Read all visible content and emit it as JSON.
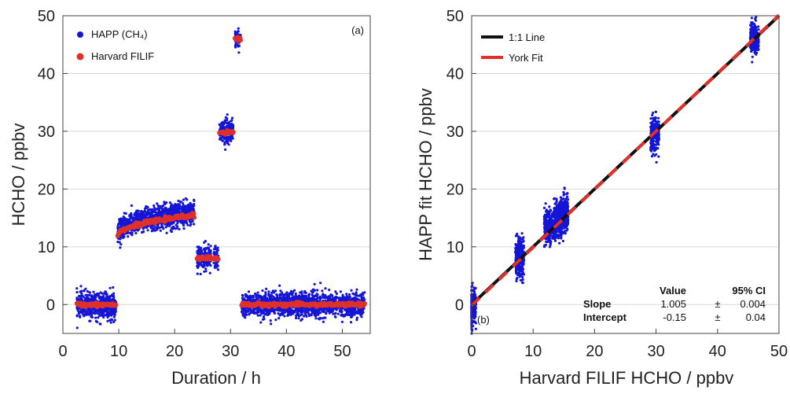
{
  "chart_data": [
    {
      "panel_label": "(a)",
      "type": "scatter",
      "xlabel": "Duration / h",
      "ylabel": "HCHO / ppbv",
      "xlim": [
        0,
        55
      ],
      "ylim": [
        -5,
        50
      ],
      "x_ticks": [
        0,
        10,
        20,
        30,
        40,
        50
      ],
      "y_ticks": [
        0,
        10,
        20,
        30,
        40,
        50
      ],
      "grid": "horizontal",
      "legend_position": "top-left",
      "series": [
        {
          "name": "HAPP (CH₄)",
          "color": "#1515d6",
          "segments": [
            {
              "x_start": 2.5,
              "x_end": 9.5,
              "y_start": -0.2,
              "y_end": -0.2,
              "spread": 2.0
            },
            {
              "x_start": 9.8,
              "x_end": 23.5,
              "y_start": 12.5,
              "y_end": 16.0,
              "spread": 1.8
            },
            {
              "x_start": 24.0,
              "x_end": 26.5,
              "y_start": 8.0,
              "y_end": 8.0,
              "spread": 2.0
            },
            {
              "x_start": 27.0,
              "x_end": 27.8,
              "y_start": 8.0,
              "y_end": 8.0,
              "spread": 2.0
            },
            {
              "x_start": 28.0,
              "x_end": 30.5,
              "y_start": 29.8,
              "y_end": 29.8,
              "spread": 1.8
            },
            {
              "x_start": 30.8,
              "x_end": 31.8,
              "y_start": 46.0,
              "y_end": 46.0,
              "spread": 1.3
            },
            {
              "x_start": 32.0,
              "x_end": 54.0,
              "y_start": 0.0,
              "y_end": 0.0,
              "spread": 1.8
            }
          ]
        },
        {
          "name": "Harvard FILIF",
          "color": "#e0302b",
          "segments": [
            {
              "x_start": 2.5,
              "x_end": 9.5,
              "y_start": 0.0,
              "y_end": 0.0
            },
            {
              "x_start": 9.8,
              "x_end": 23.5,
              "y_start": 12.0,
              "y_end": 15.5
            },
            {
              "x_start": 24.0,
              "x_end": 26.5,
              "y_start": 8.0,
              "y_end": 8.0
            },
            {
              "x_start": 27.0,
              "x_end": 27.8,
              "y_start": 8.0,
              "y_end": 8.0
            },
            {
              "x_start": 28.0,
              "x_end": 30.5,
              "y_start": 29.8,
              "y_end": 29.8
            },
            {
              "x_start": 30.8,
              "x_end": 31.8,
              "y_start": 46.0,
              "y_end": 46.0
            },
            {
              "x_start": 32.0,
              "x_end": 54.0,
              "y_start": 0.0,
              "y_end": 0.0
            }
          ]
        }
      ]
    },
    {
      "panel_label": "(b)",
      "type": "scatter",
      "xlabel": "Harvard FILIF HCHO / ppbv",
      "ylabel": "HAPP fit HCHO / ppbv",
      "xlim": [
        0,
        50
      ],
      "ylim": [
        -5,
        50
      ],
      "x_ticks": [
        0,
        10,
        20,
        30,
        40,
        50
      ],
      "y_ticks": [
        0,
        10,
        20,
        30,
        40,
        50
      ],
      "grid": "horizontal",
      "legend_position": "top-left",
      "point_color": "#1515d6",
      "point_clusters": [
        {
          "x": 0.0,
          "y_center": -0.5,
          "spread": 3.0
        },
        {
          "x": 7.8,
          "y_center": 8.0,
          "spread": 3.5
        },
        {
          "x": 12.5,
          "y_center": 13.5,
          "spread": 3.0
        },
        {
          "x": 14.0,
          "y_center": 14.5,
          "spread": 3.2
        },
        {
          "x": 15.0,
          "y_center": 15.5,
          "spread": 3.0
        },
        {
          "x": 29.8,
          "y_center": 29.6,
          "spread": 3.0
        },
        {
          "x": 46.0,
          "y_center": 46.2,
          "spread": 2.5
        }
      ],
      "lines": [
        {
          "name": "1:1 Line",
          "color": "#111111",
          "dashed": false,
          "slope": 1.0,
          "intercept": 0.0
        },
        {
          "name": "York Fit",
          "color": "#e0302b",
          "dashed": true,
          "slope": 1.005,
          "intercept": -0.15
        }
      ],
      "fit_table": {
        "header_value": "Value",
        "header_ci": "95% CI",
        "rows": [
          {
            "label": "Slope",
            "value": "1.005",
            "pm": "±",
            "ci": "0.004"
          },
          {
            "label": "Intercept",
            "value": "-0.15",
            "pm": "±",
            "ci": "0.04"
          }
        ]
      }
    }
  ]
}
